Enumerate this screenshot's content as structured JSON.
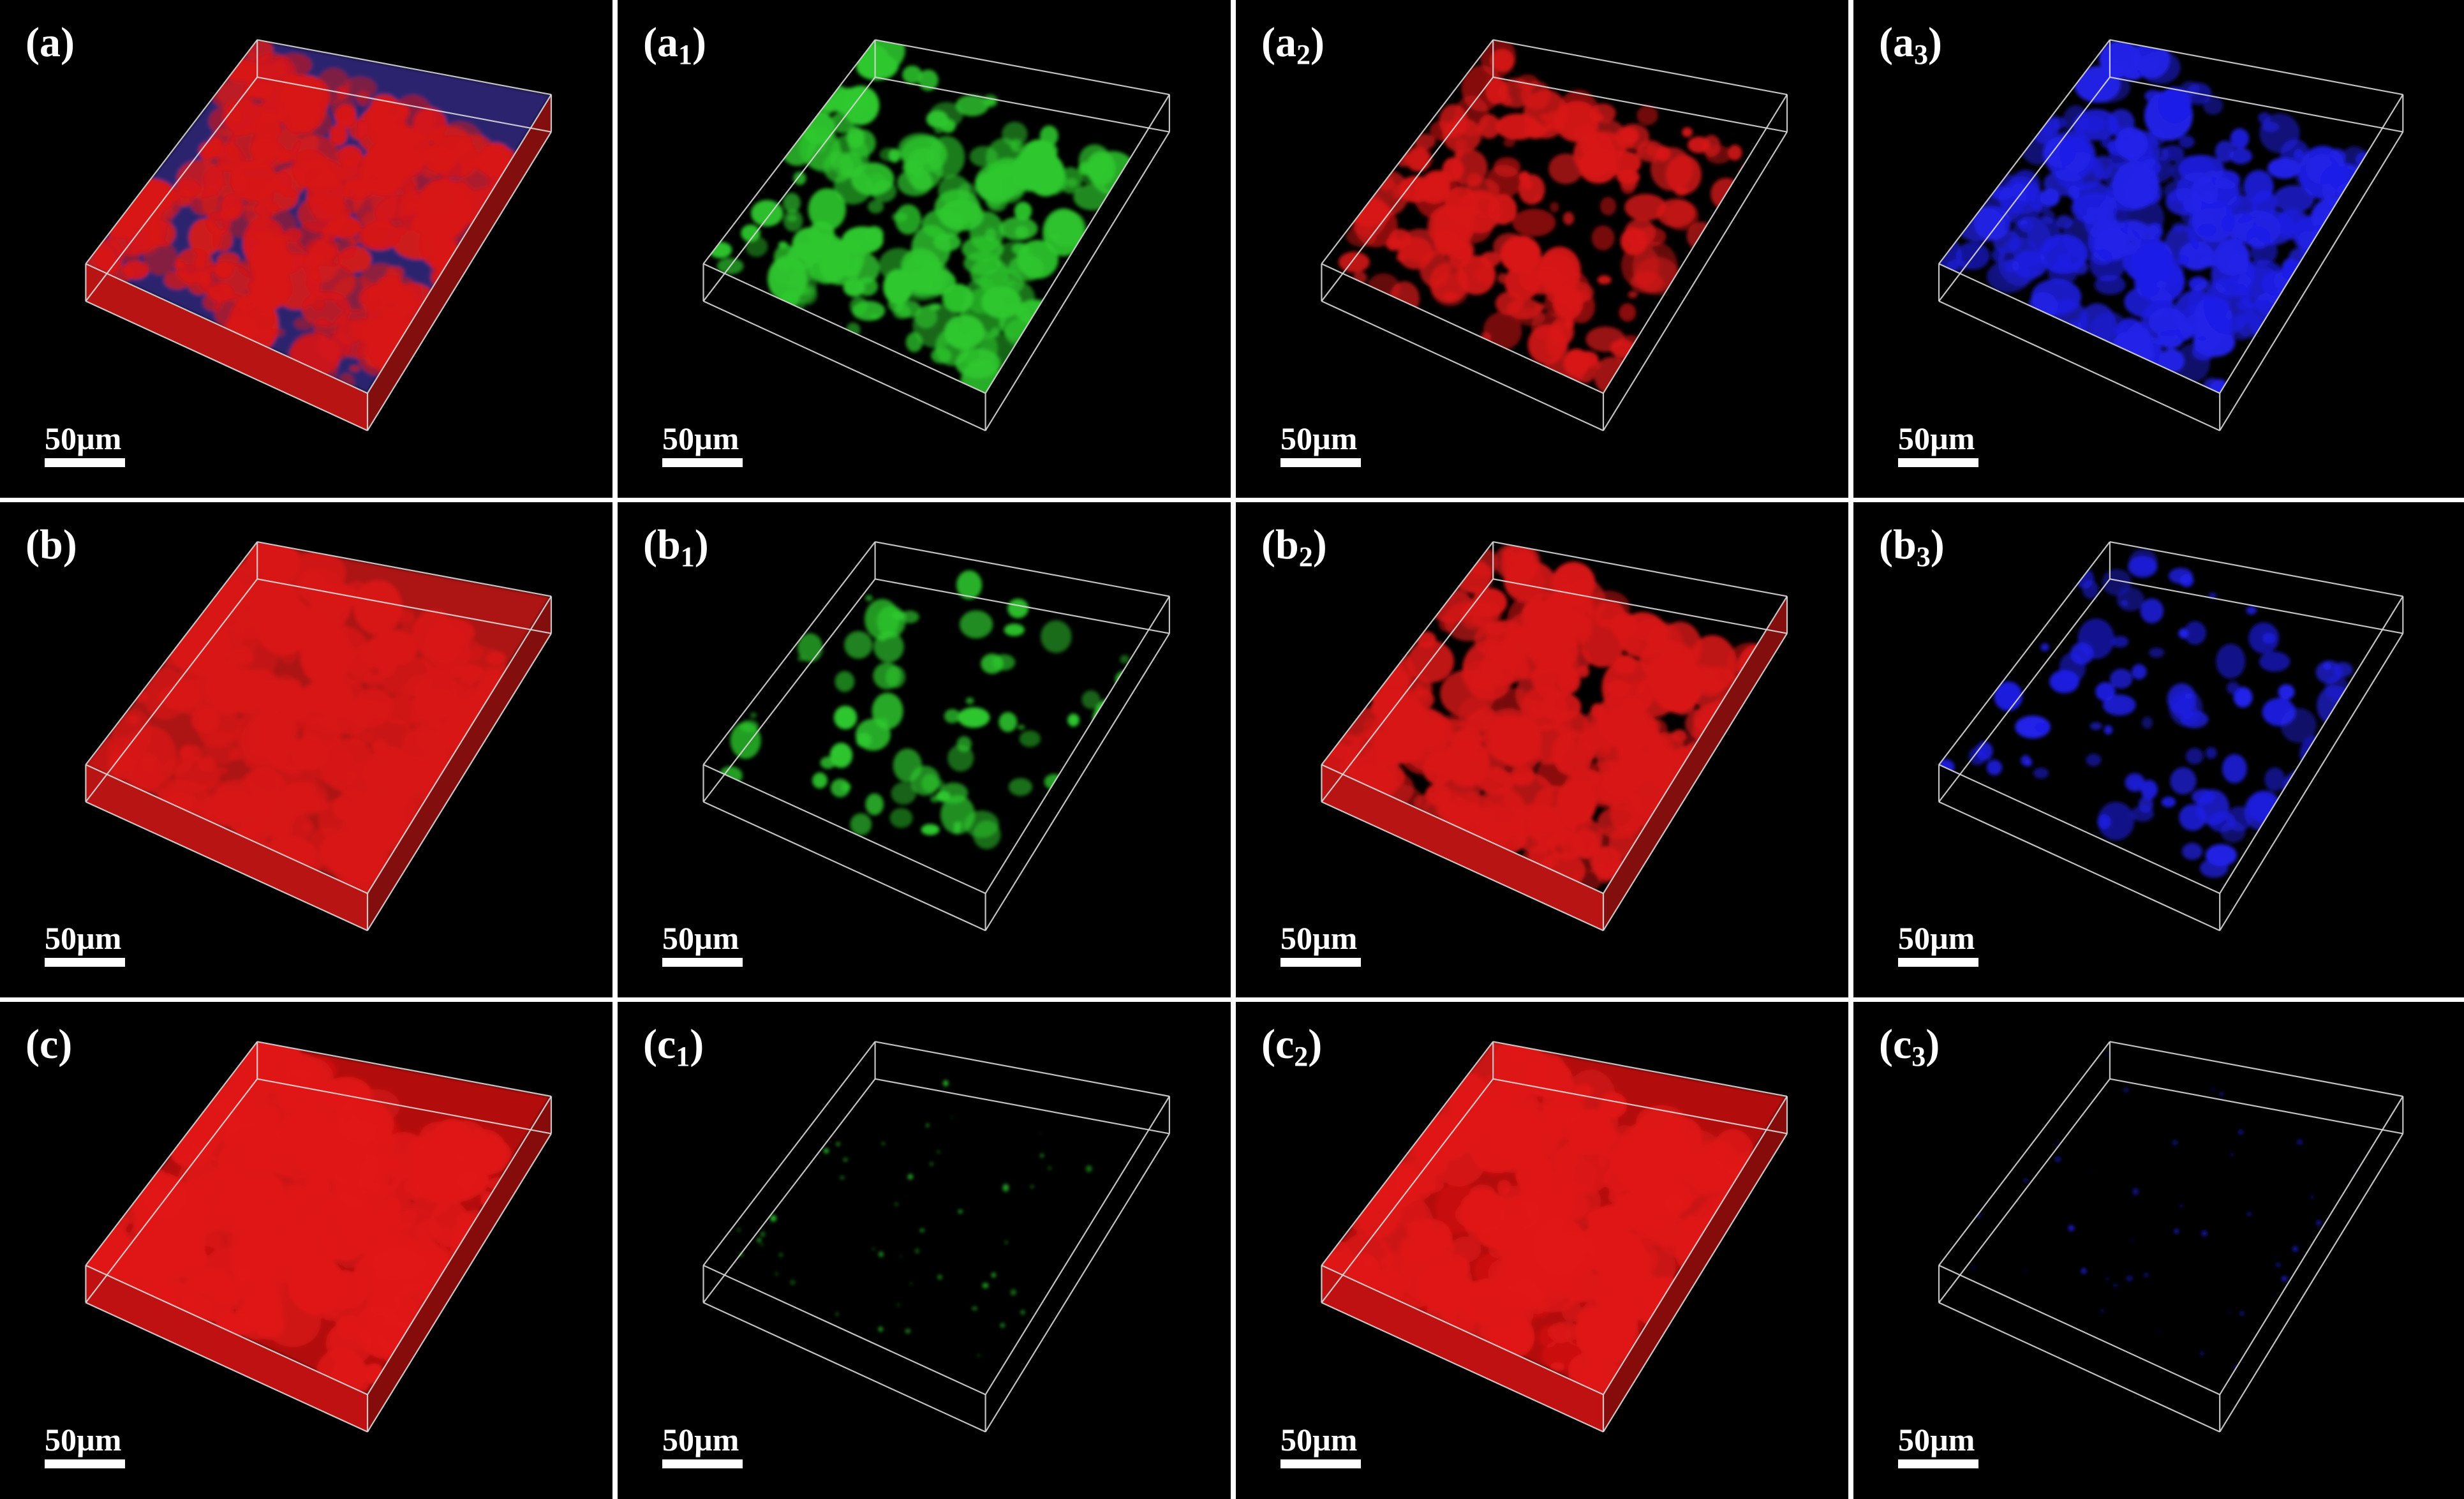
{
  "figure": {
    "scale_bar_label": "50µm",
    "rows": [
      {
        "panels": [
          {
            "letter": "a",
            "sub": "",
            "channel": "merge",
            "coverage": 0.85,
            "colors": [
              "#d81818",
              "#5040c8"
            ]
          },
          {
            "letter": "a",
            "sub": "1",
            "channel": "green",
            "coverage": 0.55,
            "colors": [
              "#2ec82e"
            ]
          },
          {
            "letter": "a",
            "sub": "2",
            "channel": "red",
            "coverage": 0.5,
            "colors": [
              "#d81818"
            ]
          },
          {
            "letter": "a",
            "sub": "3",
            "channel": "blue",
            "coverage": 0.7,
            "colors": [
              "#2020e8"
            ]
          }
        ]
      },
      {
        "panels": [
          {
            "letter": "b",
            "sub": "",
            "channel": "merge",
            "coverage": 0.95,
            "colors": [
              "#d81818",
              "#5040c8"
            ]
          },
          {
            "letter": "b",
            "sub": "1",
            "channel": "green",
            "coverage": 0.12,
            "colors": [
              "#2ec82e"
            ]
          },
          {
            "letter": "b",
            "sub": "2",
            "channel": "red",
            "coverage": 0.9,
            "colors": [
              "#d81818"
            ]
          },
          {
            "letter": "b",
            "sub": "3",
            "channel": "blue",
            "coverage": 0.18,
            "colors": [
              "#2020e8"
            ]
          }
        ]
      },
      {
        "panels": [
          {
            "letter": "c",
            "sub": "",
            "channel": "merge",
            "coverage": 1.0,
            "colors": [
              "#e01414"
            ]
          },
          {
            "letter": "c",
            "sub": "1",
            "channel": "green",
            "coverage": 0.03,
            "colors": [
              "#2ec82e"
            ]
          },
          {
            "letter": "c",
            "sub": "2",
            "channel": "red",
            "coverage": 1.0,
            "colors": [
              "#e01414"
            ]
          },
          {
            "letter": "c",
            "sub": "3",
            "channel": "blue",
            "coverage": 0.02,
            "colors": [
              "#2020e8"
            ]
          }
        ]
      }
    ]
  }
}
